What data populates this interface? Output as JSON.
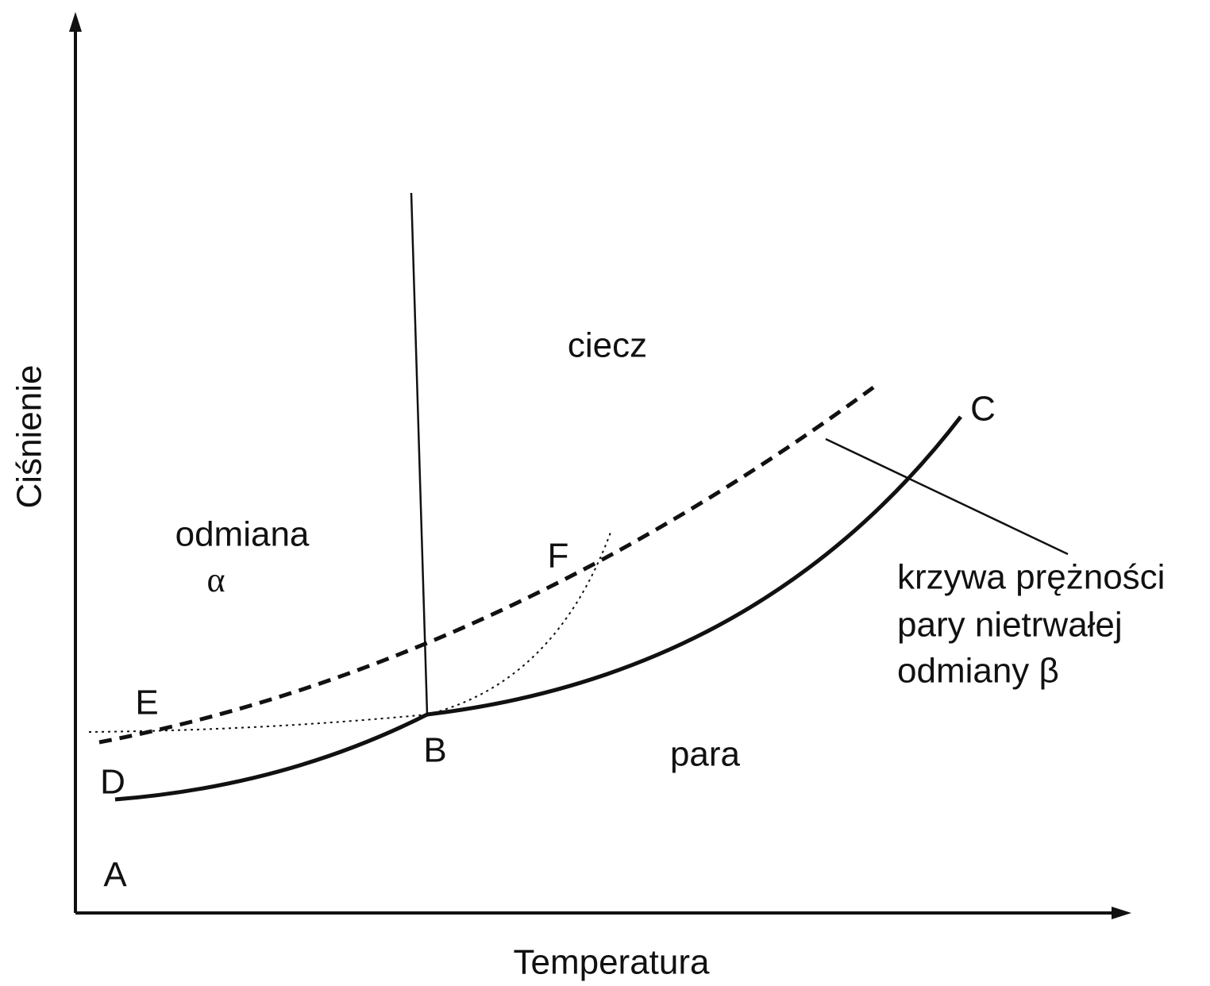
{
  "axes": {
    "x_label": "Temperatura",
    "y_label": "Ciśnienie"
  },
  "regions": {
    "liquid": "ciecz",
    "alpha": "odmiana",
    "alpha_symbol": "α",
    "vapor": "para"
  },
  "points": {
    "A": "A",
    "B": "B",
    "C": "C",
    "D": "D",
    "E": "E",
    "F": "F"
  },
  "annotation": {
    "lines": [
      "krzywa prężności",
      "pary nietrwałej",
      "odmiany β"
    ]
  }
}
